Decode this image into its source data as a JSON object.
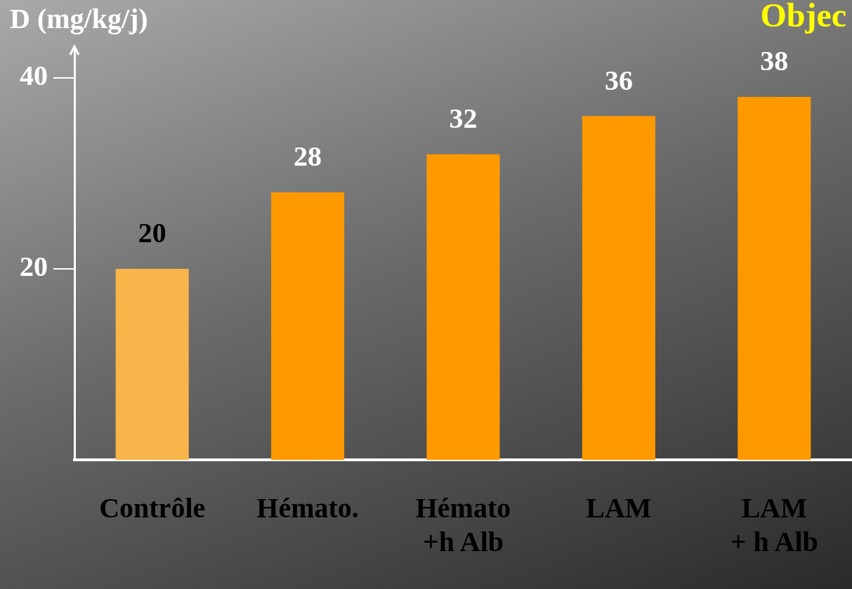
{
  "chart_data": {
    "type": "bar",
    "title": "Objec",
    "ylabel": "D (mg/kg/j)",
    "categories": [
      "Contrôle",
      "Hémato.",
      "Hémato\n+h Alb",
      "LAM",
      "LAM\n+ h Alb"
    ],
    "values": [
      20,
      28,
      32,
      36,
      38
    ],
    "colors": [
      "#f7b54a",
      "#ff9900",
      "#ff9900",
      "#ff9900",
      "#ff9900"
    ],
    "ylim": [
      0,
      43
    ],
    "yticks": [
      20,
      40
    ],
    "data_labels": true,
    "grid": false,
    "legend": false
  }
}
